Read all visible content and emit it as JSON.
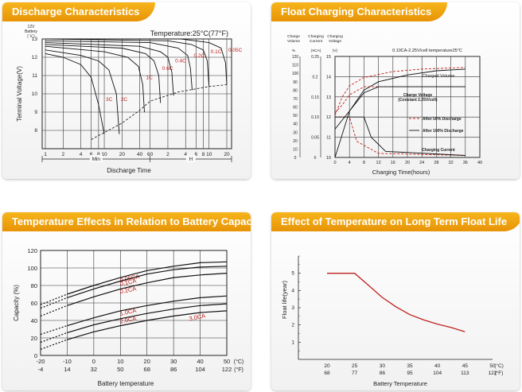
{
  "panels": {
    "discharge": {
      "title": "Discharge Characteristics"
    },
    "float": {
      "title": "Float Charging Characteristics"
    },
    "temp_capacity": {
      "title": "Temperature Effects in Relation to Battery Capacity"
    },
    "float_life": {
      "title": "Effect of Temperature on Long Term Float Life"
    }
  },
  "chart_data": [
    {
      "id": "discharge",
      "type": "line",
      "title": "",
      "annotation": "Temperature:25°C(77°F)",
      "ylabel": "Terminal Voltage(V)",
      "ylabel_unit_lines": [
        "12V",
        "Battery",
        "( V )"
      ],
      "xlabel": "Discharge Time",
      "x_unit_left": "Min",
      "x_unit_right": "H",
      "ylim": [
        7,
        13
      ],
      "yticks": [
        "13",
        "12",
        "11",
        "10",
        "9",
        "8"
      ],
      "xticks": [
        "1",
        "2",
        "4",
        "6",
        "8",
        "10",
        "20",
        "40",
        "60",
        "2",
        "4",
        "6",
        "8",
        "10",
        "20"
      ],
      "x_minutes": [
        1,
        2,
        4,
        6,
        8,
        10,
        20,
        40,
        60,
        120,
        240,
        360,
        480,
        600,
        1200
      ],
      "cutoff_line": [
        [
          6,
          7.5
        ],
        [
          20,
          8.4
        ],
        [
          40,
          9.1
        ],
        [
          60,
          9.6
        ],
        [
          180,
          10.1
        ],
        [
          600,
          10.4
        ],
        [
          1200,
          10.5
        ]
      ],
      "series": [
        {
          "name": "3C",
          "points": [
            [
              1,
              12.2
            ],
            [
              2,
              12.0
            ],
            [
              4,
              11.6
            ],
            [
              6,
              10.9
            ],
            [
              8,
              9.4
            ],
            [
              10,
              7.8
            ]
          ]
        },
        {
          "name": "2C",
          "points": [
            [
              1,
              12.4
            ],
            [
              4,
              12.1
            ],
            [
              8,
              11.8
            ],
            [
              12,
              11.3
            ],
            [
              16,
              10.0
            ],
            [
              18,
              7.8
            ]
          ]
        },
        {
          "name": "1C",
          "points": [
            [
              1,
              12.6
            ],
            [
              10,
              12.3
            ],
            [
              25,
              12.0
            ],
            [
              38,
              11.5
            ],
            [
              45,
              10.5
            ],
            [
              48,
              9.0
            ]
          ]
        },
        {
          "name": "0.6C",
          "points": [
            [
              1,
              12.7
            ],
            [
              20,
              12.5
            ],
            [
              50,
              12.2
            ],
            [
              70,
              11.8
            ],
            [
              84,
              11.0
            ],
            [
              90,
              9.5
            ]
          ]
        },
        {
          "name": "0.4C",
          "points": [
            [
              1,
              12.8
            ],
            [
              40,
              12.6
            ],
            [
              90,
              12.3
            ],
            [
              120,
              12.0
            ],
            [
              140,
              11.2
            ],
            [
              150,
              9.9
            ]
          ]
        },
        {
          "name": "0.2C",
          "points": [
            [
              1,
              12.9
            ],
            [
              60,
              12.8
            ],
            [
              180,
              12.5
            ],
            [
              260,
              12.1
            ],
            [
              290,
              11.4
            ],
            [
              310,
              10.2
            ]
          ]
        },
        {
          "name": "0.1C",
          "points": [
            [
              1,
              13.0
            ],
            [
              120,
              12.9
            ],
            [
              300,
              12.7
            ],
            [
              480,
              12.4
            ],
            [
              560,
              11.8
            ],
            [
              600,
              10.4
            ]
          ]
        },
        {
          "name": "0.05C",
          "points": [
            [
              1,
              13.0
            ],
            [
              200,
              13.0
            ],
            [
              600,
              12.8
            ],
            [
              960,
              12.5
            ],
            [
              1140,
              11.7
            ],
            [
              1200,
              10.5
            ]
          ]
        }
      ]
    },
    {
      "id": "float",
      "type": "line",
      "title": "",
      "annotation": "0.10CA-2.25V/cell  temperature25°C",
      "xlabel": "Charging Time(hours)",
      "y_headers": [
        "Charge Volume",
        "Charging Current",
        "Charging Voltage"
      ],
      "y_units": [
        "%",
        "(XCA)",
        "(V)"
      ],
      "xlim": [
        0,
        40
      ],
      "xticks": [
        "0",
        "4",
        "8",
        "12",
        "16",
        "20",
        "24",
        "28",
        "32",
        "36",
        "40"
      ],
      "y_volume": {
        "ylim": [
          0,
          120
        ],
        "ticks": [
          "120",
          "110",
          "100",
          "90",
          "80",
          "70",
          "60",
          "50",
          "40",
          "30",
          "20",
          "10",
          "0"
        ]
      },
      "y_current": {
        "ylim": [
          0,
          0.25
        ],
        "ticks": [
          "0.25",
          "0.2",
          "0.15",
          "0.10",
          "0.05",
          "0"
        ]
      },
      "y_voltage": {
        "ylim": [
          10,
          15
        ],
        "ticks": [
          "15",
          "14",
          "13",
          "12",
          "11",
          "10"
        ]
      },
      "labels": [
        "Charged Volume",
        "Charge Voltage (Constant 2.25V/cell)",
        "After 50% Discharge",
        "After 100% Discharge",
        "Charging Current"
      ],
      "series": [
        {
          "name": "Charged Volume",
          "axis": "volume",
          "style": "dashed-red",
          "points": [
            [
              0,
              50
            ],
            [
              2,
              72
            ],
            [
              4,
              85
            ],
            [
              8,
              95
            ],
            [
              16,
              102
            ],
            [
              24,
              105
            ],
            [
              36,
              107
            ]
          ]
        },
        {
          "name": "Charged Volume",
          "axis": "volume",
          "style": "solid-black",
          "points": [
            [
              0,
              0
            ],
            [
              4,
              55
            ],
            [
              8,
              80
            ],
            [
              12,
              90
            ],
            [
              20,
              98
            ],
            [
              28,
              103
            ],
            [
              36,
              105
            ]
          ]
        },
        {
          "name": "Charge Voltage",
          "axis": "voltage",
          "style": "dashed-red",
          "points": [
            [
              0,
              12.2
            ],
            [
              2,
              12.6
            ],
            [
              4,
              13.1
            ],
            [
              8,
              13.5
            ],
            [
              36,
              13.5
            ]
          ]
        },
        {
          "name": "Charge Voltage",
          "axis": "voltage",
          "style": "solid-black",
          "points": [
            [
              0,
              11.4
            ],
            [
              4,
              12.3
            ],
            [
              8,
              13.2
            ],
            [
              12,
              13.5
            ],
            [
              36,
              13.5
            ]
          ]
        },
        {
          "name": "Charging Current",
          "axis": "current",
          "style": "dashed-red",
          "points": [
            [
              0,
              0.1
            ],
            [
              2,
              0.1
            ],
            [
              4,
              0.1
            ],
            [
              6,
              0.04
            ],
            [
              12,
              0.01
            ],
            [
              36,
              0.005
            ]
          ]
        },
        {
          "name": "Charging Current",
          "axis": "current",
          "style": "solid-black",
          "points": [
            [
              0,
              0.1
            ],
            [
              6,
              0.1
            ],
            [
              8,
              0.1
            ],
            [
              10,
              0.05
            ],
            [
              14,
              0.015
            ],
            [
              36,
              0.005
            ]
          ]
        }
      ]
    },
    {
      "id": "temp_capacity",
      "type": "line",
      "title": "",
      "xlabel": "Battery temperature",
      "ylabel": "Capacity (%)",
      "ylim": [
        0,
        120
      ],
      "yticks": [
        "120",
        "100",
        "80",
        "60",
        "40",
        "20",
        "0"
      ],
      "x_celsius": [
        -20,
        -10,
        0,
        10,
        20,
        30,
        40,
        50
      ],
      "xticks_c": [
        "-20",
        "-10",
        "0",
        "10",
        "20",
        "30",
        "40",
        "50"
      ],
      "xticks_f": [
        "-4",
        "14",
        "32",
        "50",
        "68",
        "86",
        "104",
        "122"
      ],
      "x_units": [
        "(°C)",
        "(°F)"
      ],
      "series": [
        {
          "name": "0.05CA",
          "points": [
            [
              -20,
              58
            ],
            [
              -10,
              70
            ],
            [
              0,
              80
            ],
            [
              10,
              89
            ],
            [
              20,
              97
            ],
            [
              30,
              102
            ],
            [
              40,
              106
            ],
            [
              50,
              107
            ]
          ]
        },
        {
          "name": "0.1CA",
          "points": [
            [
              -20,
              54
            ],
            [
              -10,
              66
            ],
            [
              0,
              76
            ],
            [
              10,
              85
            ],
            [
              20,
              93
            ],
            [
              30,
              98
            ],
            [
              40,
              101
            ],
            [
              50,
              102
            ]
          ]
        },
        {
          "name": "0.2CA",
          "points": [
            [
              -20,
              45
            ],
            [
              -10,
              57
            ],
            [
              0,
              67
            ],
            [
              10,
              76
            ],
            [
              20,
              83
            ],
            [
              30,
              89
            ],
            [
              40,
              92
            ],
            [
              50,
              94
            ]
          ]
        },
        {
          "name": "1.0CA",
          "points": [
            [
              -20,
              24
            ],
            [
              -10,
              34
            ],
            [
              0,
              43
            ],
            [
              10,
              51
            ],
            [
              20,
              57
            ],
            [
              30,
              62
            ],
            [
              40,
              66
            ],
            [
              50,
              68
            ]
          ]
        },
        {
          "name": "2.0CA",
          "points": [
            [
              -20,
              15
            ],
            [
              -10,
              26
            ],
            [
              0,
              35
            ],
            [
              10,
              42
            ],
            [
              20,
              48
            ],
            [
              30,
              53
            ],
            [
              40,
              57
            ],
            [
              50,
              59
            ]
          ]
        },
        {
          "name": "3.0CA",
          "points": [
            [
              -20,
              7
            ],
            [
              -10,
              18
            ],
            [
              0,
              27
            ],
            [
              10,
              34
            ],
            [
              20,
              40
            ],
            [
              30,
              45
            ],
            [
              40,
              49
            ],
            [
              50,
              51
            ]
          ]
        }
      ]
    },
    {
      "id": "float_life",
      "type": "line",
      "title": "",
      "xlabel": "Battery Temperature",
      "ylabel": "Float life(year)",
      "ylim": [
        0,
        6
      ],
      "yticks": [
        "1",
        "2",
        "3",
        "4",
        "5"
      ],
      "x_celsius": [
        20,
        25,
        30,
        35,
        40,
        45,
        50
      ],
      "xticks_c": [
        "20",
        "25",
        "30",
        "35",
        "40",
        "45",
        "50"
      ],
      "xticks_f": [
        "68",
        "77",
        "86",
        "95",
        "104",
        "113",
        "122"
      ],
      "x_units": [
        "(°C)",
        "(°F)"
      ],
      "series": [
        {
          "name": "",
          "points": [
            [
              20,
              5.0
            ],
            [
              25,
              5.0
            ],
            [
              27.5,
              4.3
            ],
            [
              30,
              3.6
            ],
            [
              32.5,
              3.05
            ],
            [
              35,
              2.6
            ],
            [
              37.5,
              2.3
            ],
            [
              40,
              2.05
            ],
            [
              42.5,
              1.85
            ],
            [
              45,
              1.6
            ]
          ]
        }
      ]
    }
  ]
}
